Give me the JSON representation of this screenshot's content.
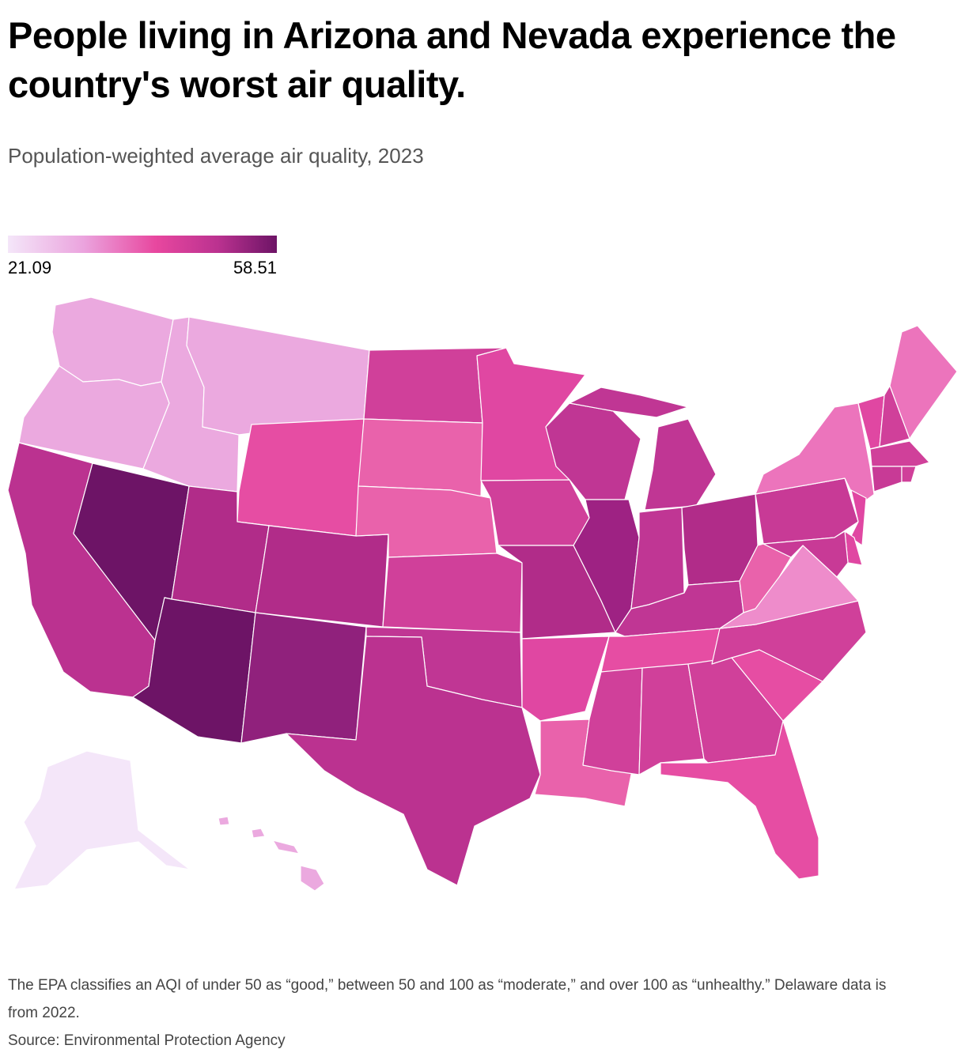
{
  "title": "People living in Arizona and Nevada experience the country's worst air quality.",
  "subtitle": "Population-weighted average air quality, 2023",
  "legend": {
    "min": "21.09",
    "max": "58.51",
    "colors": [
      "#f4e6f9",
      "#eba4de",
      "#e8479f",
      "#bb3290",
      "#6d1466"
    ]
  },
  "note": "The EPA classifies an AQI of under 50 as “good,” between 50 and 100 as “moderate,” and over 100 as “unhealthy.” Delaware data is from 2022.",
  "source": "Source: Environmental Protection Agency",
  "states": [
    {
      "id": "WA",
      "color": "#eba9df"
    },
    {
      "id": "OR",
      "color": "#eba9df"
    },
    {
      "id": "CA",
      "color": "#bb3290"
    },
    {
      "id": "NV",
      "color": "#6d1466"
    },
    {
      "id": "ID",
      "color": "#eba9df"
    },
    {
      "id": "MT",
      "color": "#eba9df"
    },
    {
      "id": "WY",
      "color": "#e64da3"
    },
    {
      "id": "UT",
      "color": "#b12c89"
    },
    {
      "id": "AZ",
      "color": "#6d1466"
    },
    {
      "id": "CO",
      "color": "#b12c89"
    },
    {
      "id": "NM",
      "color": "#90217c"
    },
    {
      "id": "ND",
      "color": "#d0409a"
    },
    {
      "id": "SD",
      "color": "#e962ab"
    },
    {
      "id": "NE",
      "color": "#e962ab"
    },
    {
      "id": "KS",
      "color": "#d0409a"
    },
    {
      "id": "OK",
      "color": "#c03694"
    },
    {
      "id": "TX",
      "color": "#bb3290"
    },
    {
      "id": "MN",
      "color": "#e047a2"
    },
    {
      "id": "IA",
      "color": "#d0409a"
    },
    {
      "id": "MO",
      "color": "#b12c89"
    },
    {
      "id": "AR",
      "color": "#e047a2"
    },
    {
      "id": "LA",
      "color": "#e962ab"
    },
    {
      "id": "WI",
      "color": "#c03694"
    },
    {
      "id": "IL",
      "color": "#9e2283"
    },
    {
      "id": "MI",
      "color": "#c03694"
    },
    {
      "id": "IN",
      "color": "#c03694"
    },
    {
      "id": "OH",
      "color": "#b12c89"
    },
    {
      "id": "KY",
      "color": "#c03694"
    },
    {
      "id": "TN",
      "color": "#e64da3"
    },
    {
      "id": "MS",
      "color": "#d0409a"
    },
    {
      "id": "AL",
      "color": "#d0409a"
    },
    {
      "id": "GA",
      "color": "#d0409a"
    },
    {
      "id": "FL",
      "color": "#e64da3"
    },
    {
      "id": "SC",
      "color": "#e64da3"
    },
    {
      "id": "NC",
      "color": "#d0409a"
    },
    {
      "id": "VA",
      "color": "#ee8ccb"
    },
    {
      "id": "WV",
      "color": "#e962ab"
    },
    {
      "id": "PA",
      "color": "#c83a96"
    },
    {
      "id": "NY",
      "color": "#ec74bc"
    },
    {
      "id": "VT",
      "color": "#e047a2"
    },
    {
      "id": "NH",
      "color": "#d0409a"
    },
    {
      "id": "ME",
      "color": "#ec74bc"
    },
    {
      "id": "MA",
      "color": "#d0409a"
    },
    {
      "id": "CT",
      "color": "#c83a96"
    },
    {
      "id": "RI",
      "color": "#d0409a"
    },
    {
      "id": "NJ",
      "color": "#e047a2"
    },
    {
      "id": "DE",
      "color": "#e047a2"
    },
    {
      "id": "MD",
      "color": "#c83a96"
    },
    {
      "id": "AK",
      "color": "#f4e6f9"
    },
    {
      "id": "HI",
      "color": "#eba9df"
    }
  ]
}
